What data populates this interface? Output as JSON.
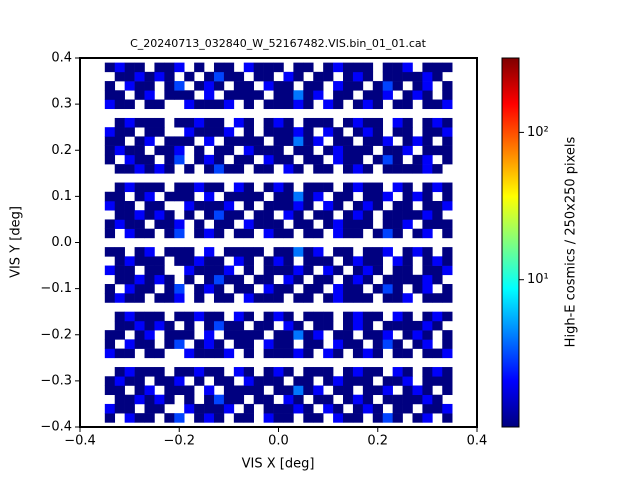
{
  "chart_data": {
    "type": "heatmap",
    "title": "C_20240713_032840_W_52167482.VIS.bin_01_01.cat",
    "xlabel": "VIS X [deg]",
    "ylabel": "VIS Y [deg]",
    "zlabel": "High-E cosmics / 250x250 pixels",
    "colormap": "jet",
    "zscale": "log",
    "xlim": [
      -0.4,
      0.4
    ],
    "ylim": [
      -0.4,
      0.4
    ],
    "zlim": [
      1,
      320
    ],
    "xticks": [
      {
        "value": -0.4,
        "label": "−0.4"
      },
      {
        "value": -0.2,
        "label": "−0.2"
      },
      {
        "value": 0,
        "label": "0.0"
      },
      0.2,
      0.4
    ],
    "yticks": [
      {
        "value": -0.4,
        "label": "−0.4"
      },
      {
        "value": -0.3,
        "label": "−0.3"
      },
      {
        "value": -0.2,
        "label": "−0.2"
      },
      {
        "value": -0.1,
        "label": "−0.1"
      },
      {
        "value": 0,
        "label": "0.0"
      },
      0.1,
      0.2,
      0.3,
      0.4
    ],
    "zticks": [
      {
        "value": 10,
        "label": "10¹"
      },
      {
        "value": 100,
        "label": "10²"
      }
    ],
    "x_edges": [
      -0.35,
      -0.33,
      -0.31,
      -0.29,
      -0.27,
      -0.25,
      -0.23,
      -0.21,
      -0.19,
      -0.17,
      -0.15,
      -0.13,
      -0.11,
      -0.09,
      -0.07,
      -0.05,
      -0.03,
      -0.01,
      0.01,
      0.03,
      0.05,
      0.07,
      0.09,
      0.11,
      0.13,
      0.15,
      0.17,
      0.19,
      0.21,
      0.23,
      0.25,
      0.27,
      0.29,
      0.31,
      0.33,
      0.35
    ],
    "y_edges": [
      -0.39,
      -0.37,
      -0.35,
      -0.33,
      -0.31,
      -0.29,
      -0.27,
      -0.25,
      -0.23,
      -0.21,
      -0.19,
      -0.17,
      -0.15,
      -0.13,
      -0.11,
      -0.09,
      -0.07,
      -0.05,
      -0.03,
      -0.01,
      0.01,
      0.03,
      0.05,
      0.07,
      0.09,
      0.11,
      0.13,
      0.15,
      0.17,
      0.19,
      0.21,
      0.23,
      0.25,
      0.27,
      0.29,
      0.31,
      0.33,
      0.35,
      0.37,
      0.39
    ],
    "z": [
      [
        1,
        0,
        2,
        1,
        1,
        0,
        1,
        3,
        0,
        1,
        2,
        1,
        0,
        1,
        1,
        0,
        2,
        1,
        1,
        0,
        1,
        1,
        0,
        2,
        1,
        1,
        0,
        1,
        3,
        1,
        0,
        1,
        2,
        0,
        1
      ],
      [
        2,
        1,
        1,
        0,
        1,
        1,
        0,
        0,
        2,
        1,
        1,
        1,
        2,
        0,
        1,
        0,
        1,
        1,
        1,
        2,
        1,
        0,
        2,
        1,
        0,
        1,
        2,
        1,
        0,
        1,
        1,
        0,
        1,
        1,
        2
      ],
      [
        0,
        1,
        1,
        2,
        1,
        2,
        1,
        0,
        1,
        0,
        1,
        3,
        1,
        1,
        0,
        1,
        1,
        0,
        2,
        1,
        0,
        1,
        1,
        0,
        1,
        2,
        1,
        0,
        1,
        1,
        1,
        1,
        2,
        1,
        0
      ],
      [
        1,
        1,
        0,
        1,
        2,
        0,
        1,
        1,
        1,
        0,
        2,
        0,
        1,
        1,
        1,
        1,
        0,
        1,
        1,
        4,
        1,
        2,
        0,
        1,
        1,
        0,
        1,
        1,
        2,
        0,
        1,
        2,
        1,
        0,
        1
      ],
      [
        1,
        2,
        1,
        1,
        0,
        1,
        1,
        2,
        0,
        1,
        0,
        1,
        1,
        0,
        2,
        1,
        1,
        1,
        0,
        1,
        1,
        0,
        1,
        2,
        1,
        1,
        1,
        0,
        1,
        1,
        2,
        0,
        1,
        1,
        1
      ],
      [
        0,
        1,
        2,
        1,
        1,
        1,
        0,
        1,
        1,
        2,
        1,
        1,
        0,
        2,
        1,
        0,
        1,
        2,
        1,
        0,
        1,
        1,
        1,
        0,
        1,
        2,
        1,
        1,
        0,
        2,
        1,
        0,
        1,
        2,
        1
      ],
      [
        0,
        0,
        0,
        0,
        0,
        0,
        0,
        0,
        0,
        0,
        0,
        0,
        0,
        0,
        0,
        0,
        0,
        0,
        0,
        0,
        0,
        0,
        0,
        0,
        0,
        0,
        0,
        0,
        0,
        0,
        0,
        0,
        0,
        0,
        0
      ],
      [
        2,
        1,
        1,
        0,
        1,
        1,
        0,
        0,
        2,
        1,
        1,
        1,
        2,
        0,
        1,
        0,
        1,
        1,
        1,
        2,
        1,
        0,
        2,
        1,
        0,
        1,
        2,
        1,
        0,
        1,
        1,
        0,
        1,
        1,
        2
      ],
      [
        1,
        0,
        2,
        1,
        1,
        0,
        1,
        3,
        0,
        1,
        2,
        1,
        0,
        1,
        1,
        0,
        2,
        1,
        1,
        0,
        1,
        1,
        0,
        2,
        1,
        1,
        0,
        1,
        3,
        1,
        0,
        1,
        2,
        0,
        1
      ],
      [
        1,
        1,
        0,
        1,
        2,
        0,
        1,
        1,
        1,
        0,
        2,
        0,
        1,
        1,
        1,
        1,
        0,
        1,
        1,
        4,
        1,
        2,
        0,
        1,
        1,
        0,
        1,
        1,
        2,
        0,
        1,
        2,
        1,
        0,
        1
      ],
      [
        0,
        1,
        1,
        2,
        1,
        2,
        1,
        0,
        1,
        0,
        1,
        3,
        1,
        1,
        0,
        1,
        1,
        0,
        2,
        1,
        0,
        1,
        1,
        0,
        1,
        2,
        1,
        0,
        1,
        1,
        1,
        1,
        2,
        1,
        0
      ],
      [
        0,
        1,
        2,
        1,
        1,
        1,
        0,
        1,
        1,
        2,
        1,
        1,
        0,
        2,
        1,
        0,
        1,
        2,
        1,
        0,
        1,
        1,
        1,
        0,
        1,
        2,
        1,
        1,
        0,
        2,
        1,
        0,
        1,
        2,
        1
      ],
      [
        0,
        0,
        0,
        0,
        0,
        0,
        0,
        0,
        0,
        0,
        0,
        0,
        0,
        0,
        0,
        0,
        0,
        0,
        0,
        0,
        0,
        0,
        0,
        0,
        0,
        0,
        0,
        0,
        0,
        0,
        0,
        0,
        0,
        0,
        0
      ],
      [
        1,
        2,
        1,
        1,
        0,
        1,
        1,
        2,
        0,
        1,
        0,
        1,
        1,
        0,
        2,
        1,
        1,
        1,
        0,
        1,
        1,
        0,
        1,
        2,
        1,
        1,
        1,
        0,
        1,
        1,
        2,
        0,
        1,
        1,
        1
      ],
      [
        1,
        0,
        2,
        1,
        1,
        0,
        1,
        3,
        0,
        1,
        2,
        1,
        0,
        1,
        1,
        0,
        2,
        1,
        1,
        0,
        1,
        1,
        0,
        2,
        1,
        1,
        0,
        1,
        3,
        1,
        0,
        1,
        2,
        0,
        1
      ],
      [
        0,
        1,
        1,
        2,
        1,
        2,
        1,
        0,
        1,
        0,
        1,
        3,
        1,
        1,
        0,
        1,
        1,
        0,
        2,
        1,
        0,
        1,
        1,
        0,
        1,
        2,
        1,
        0,
        1,
        1,
        1,
        1,
        2,
        1,
        0
      ],
      [
        2,
        1,
        1,
        0,
        1,
        1,
        0,
        0,
        2,
        1,
        1,
        1,
        2,
        0,
        1,
        0,
        1,
        1,
        1,
        2,
        1,
        0,
        2,
        1,
        0,
        1,
        2,
        1,
        0,
        1,
        1,
        0,
        1,
        1,
        2
      ],
      [
        0,
        1,
        2,
        1,
        1,
        1,
        0,
        1,
        1,
        2,
        1,
        1,
        0,
        2,
        1,
        0,
        1,
        2,
        1,
        0,
        1,
        1,
        1,
        0,
        1,
        2,
        1,
        1,
        0,
        2,
        1,
        0,
        1,
        2,
        1
      ],
      [
        1,
        1,
        0,
        1,
        2,
        0,
        1,
        1,
        1,
        0,
        2,
        0,
        1,
        1,
        1,
        1,
        0,
        1,
        1,
        4,
        1,
        2,
        0,
        1,
        1,
        0,
        1,
        1,
        2,
        0,
        1,
        2,
        1,
        0,
        1
      ],
      [
        0,
        0,
        0,
        0,
        0,
        0,
        0,
        0,
        0,
        0,
        0,
        0,
        0,
        0,
        0,
        0,
        0,
        0,
        0,
        0,
        0,
        0,
        0,
        0,
        0,
        0,
        0,
        0,
        0,
        0,
        0,
        0,
        0,
        0,
        0
      ],
      [
        1,
        0,
        2,
        1,
        1,
        0,
        1,
        3,
        0,
        1,
        2,
        1,
        0,
        1,
        1,
        0,
        2,
        1,
        1,
        0,
        1,
        1,
        0,
        2,
        1,
        1,
        0,
        1,
        3,
        1,
        0,
        1,
        2,
        0,
        1
      ],
      [
        1,
        2,
        1,
        1,
        0,
        1,
        1,
        2,
        0,
        1,
        0,
        1,
        1,
        0,
        2,
        1,
        1,
        1,
        0,
        1,
        1,
        0,
        1,
        2,
        1,
        1,
        1,
        0,
        1,
        1,
        2,
        0,
        1,
        1,
        1
      ],
      [
        0,
        1,
        1,
        2,
        1,
        2,
        1,
        0,
        1,
        0,
        1,
        3,
        1,
        1,
        0,
        1,
        1,
        0,
        2,
        1,
        0,
        1,
        1,
        0,
        1,
        2,
        1,
        0,
        1,
        1,
        1,
        1,
        2,
        1,
        0
      ],
      [
        2,
        1,
        1,
        0,
        1,
        1,
        0,
        0,
        2,
        1,
        1,
        1,
        2,
        0,
        1,
        0,
        1,
        1,
        1,
        2,
        1,
        0,
        2,
        1,
        0,
        1,
        2,
        1,
        0,
        1,
        1,
        0,
        1,
        1,
        2
      ],
      [
        1,
        1,
        0,
        1,
        2,
        0,
        1,
        1,
        1,
        0,
        2,
        0,
        1,
        1,
        1,
        1,
        0,
        1,
        1,
        4,
        1,
        2,
        0,
        1,
        1,
        0,
        1,
        1,
        2,
        0,
        1,
        2,
        1,
        0,
        1
      ],
      [
        0,
        1,
        2,
        1,
        1,
        1,
        0,
        1,
        1,
        2,
        1,
        1,
        0,
        2,
        1,
        0,
        1,
        2,
        1,
        0,
        1,
        1,
        1,
        0,
        1,
        2,
        1,
        1,
        0,
        2,
        1,
        0,
        1,
        2,
        1
      ],
      [
        0,
        0,
        0,
        0,
        0,
        0,
        0,
        0,
        0,
        0,
        0,
        0,
        0,
        0,
        0,
        0,
        0,
        0,
        0,
        0,
        0,
        0,
        0,
        0,
        0,
        0,
        0,
        0,
        0,
        0,
        0,
        0,
        0,
        0,
        0
      ],
      [
        0,
        1,
        1,
        2,
        1,
        2,
        1,
        0,
        1,
        0,
        1,
        3,
        1,
        1,
        0,
        1,
        1,
        0,
        2,
        1,
        0,
        1,
        1,
        0,
        1,
        2,
        1,
        0,
        1,
        1,
        1,
        1,
        2,
        1,
        0
      ],
      [
        1,
        0,
        2,
        1,
        1,
        0,
        1,
        3,
        0,
        1,
        2,
        1,
        0,
        1,
        1,
        0,
        2,
        1,
        1,
        0,
        1,
        1,
        0,
        2,
        1,
        1,
        0,
        1,
        3,
        1,
        0,
        1,
        2,
        0,
        1
      ],
      [
        1,
        2,
        1,
        1,
        0,
        1,
        1,
        2,
        0,
        1,
        0,
        1,
        1,
        0,
        2,
        1,
        1,
        1,
        0,
        1,
        1,
        0,
        1,
        2,
        1,
        1,
        1,
        0,
        1,
        1,
        2,
        0,
        1,
        1,
        1
      ],
      [
        1,
        1,
        0,
        1,
        2,
        0,
        1,
        1,
        1,
        0,
        2,
        0,
        1,
        1,
        1,
        1,
        0,
        1,
        1,
        4,
        1,
        2,
        0,
        1,
        1,
        0,
        1,
        1,
        2,
        0,
        1,
        2,
        1,
        0,
        1
      ],
      [
        2,
        1,
        1,
        0,
        1,
        1,
        0,
        0,
        2,
        1,
        1,
        1,
        2,
        0,
        1,
        0,
        1,
        1,
        1,
        2,
        1,
        0,
        2,
        1,
        0,
        1,
        2,
        1,
        0,
        1,
        1,
        0,
        1,
        1,
        2
      ],
      [
        0,
        1,
        2,
        1,
        1,
        1,
        0,
        1,
        1,
        2,
        1,
        1,
        0,
        2,
        1,
        0,
        1,
        2,
        1,
        0,
        1,
        1,
        1,
        0,
        1,
        2,
        1,
        1,
        0,
        2,
        1,
        0,
        1,
        2,
        1
      ],
      [
        0,
        0,
        0,
        0,
        0,
        0,
        0,
        0,
        0,
        0,
        0,
        0,
        0,
        0,
        0,
        0,
        0,
        0,
        0,
        0,
        0,
        0,
        0,
        0,
        0,
        0,
        0,
        0,
        0,
        0,
        0,
        0,
        0,
        0,
        0
      ],
      [
        2,
        1,
        1,
        0,
        1,
        1,
        0,
        0,
        2,
        1,
        1,
        1,
        2,
        0,
        1,
        0,
        1,
        1,
        1,
        2,
        1,
        0,
        2,
        1,
        0,
        1,
        2,
        1,
        0,
        1,
        1,
        0,
        1,
        1,
        2
      ],
      [
        1,
        1,
        0,
        1,
        2,
        0,
        1,
        1,
        1,
        0,
        2,
        0,
        1,
        1,
        1,
        1,
        0,
        1,
        1,
        4,
        1,
        2,
        0,
        1,
        1,
        0,
        1,
        1,
        2,
        0,
        1,
        2,
        1,
        0,
        1
      ],
      [
        1,
        0,
        2,
        1,
        1,
        0,
        1,
        3,
        0,
        1,
        2,
        1,
        0,
        1,
        1,
        0,
        2,
        1,
        1,
        0,
        1,
        1,
        0,
        2,
        1,
        1,
        0,
        1,
        3,
        1,
        0,
        1,
        2,
        0,
        1
      ],
      [
        0,
        1,
        1,
        2,
        1,
        2,
        1,
        0,
        1,
        0,
        1,
        3,
        1,
        1,
        0,
        1,
        1,
        0,
        2,
        1,
        0,
        1,
        1,
        0,
        1,
        2,
        1,
        0,
        1,
        1,
        1,
        1,
        2,
        1,
        0
      ],
      [
        1,
        2,
        1,
        1,
        0,
        1,
        1,
        2,
        0,
        1,
        0,
        1,
        1,
        0,
        2,
        1,
        1,
        1,
        0,
        1,
        1,
        0,
        1,
        2,
        1,
        1,
        1,
        0,
        1,
        1,
        2,
        0,
        1,
        1,
        1
      ]
    ]
  }
}
